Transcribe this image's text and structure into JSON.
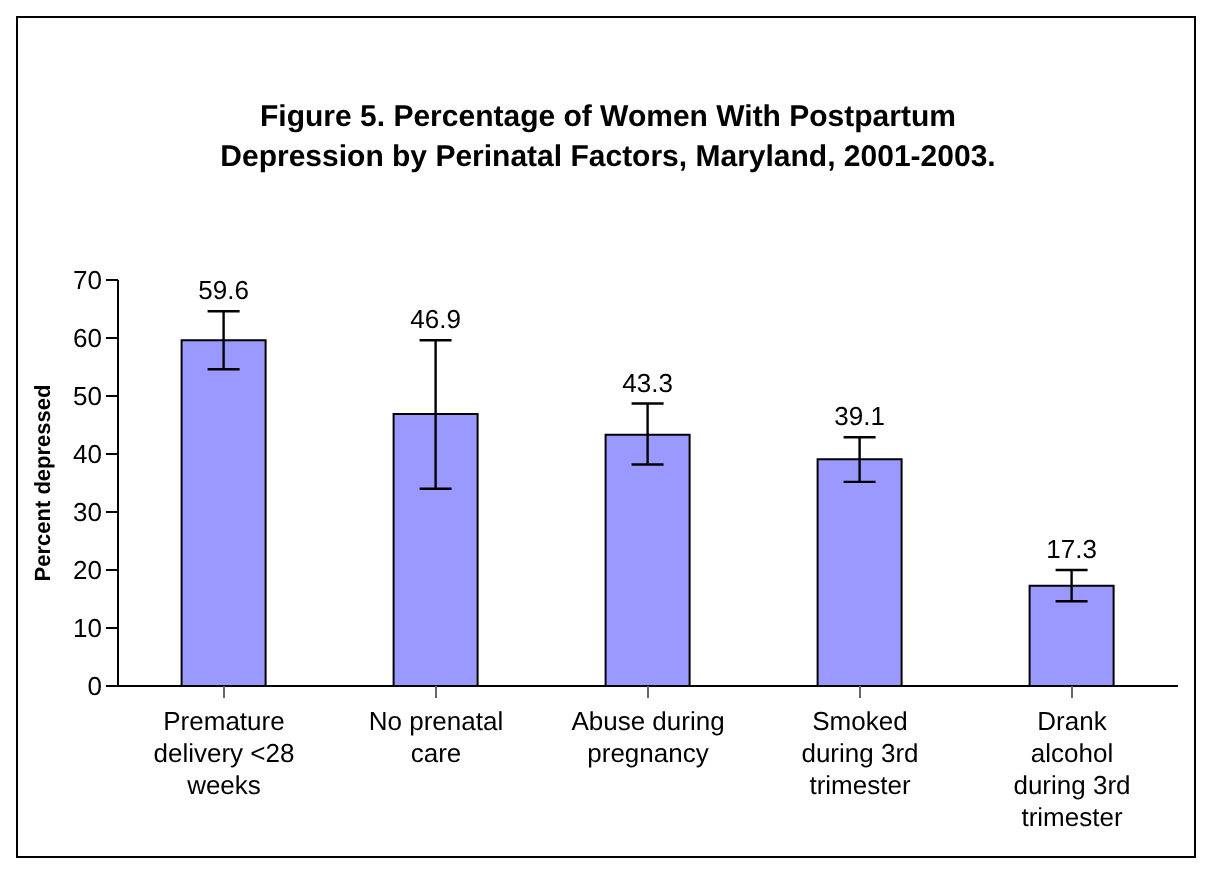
{
  "chart_data": {
    "type": "bar",
    "title": "Figure 5.  Percentage of Women With Postpartum Depression by Perinatal Factors, Maryland, 2001-2003.",
    "ylabel": "Percent depressed",
    "categories": [
      "Premature delivery <28 weeks",
      "No prenatal care",
      "Abuse during pregnancy",
      "Smoked during 3rd trimester",
      "Drank alcohol during 3rd trimester"
    ],
    "values": [
      59.6,
      46.9,
      43.3,
      39.1,
      17.3
    ],
    "errors": [
      [
        54.6,
        64.6
      ],
      [
        34,
        59.6
      ],
      [
        38.2,
        48.7
      ],
      [
        35.2,
        42.9
      ],
      [
        14.6,
        20
      ]
    ],
    "color": "#9999ff",
    "ylim": [
      0,
      70
    ],
    "yticks": [
      0,
      10,
      20,
      30,
      40,
      50,
      60,
      70
    ],
    "grid": false,
    "data_labels": true
  }
}
